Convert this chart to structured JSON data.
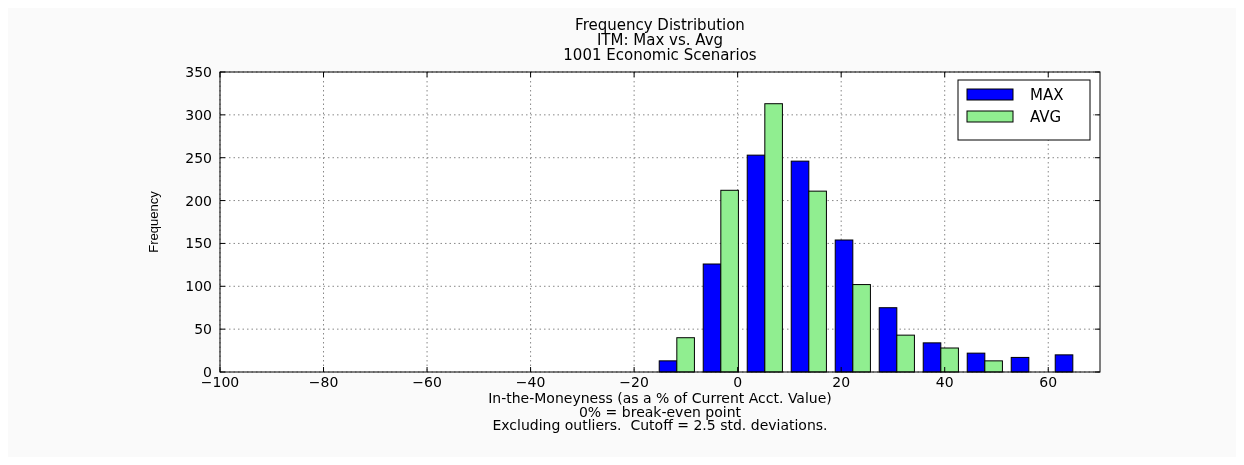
{
  "chart_data": {
    "type": "histogram",
    "title": "Frequency Distribution\nITM: Max vs. Avg\n1001 Economic Scenarios",
    "xlabel": "In-the-Moneyness (as a % of Current Acct. Value)",
    "ylabel": "Frequency",
    "annotations": [
      "0% = break-even point",
      "Excluding outliers.  Cutoff = 2.5 std. deviations."
    ],
    "bins": [
      -16,
      -7.5,
      1,
      9.5,
      18,
      26.5,
      35,
      43.5,
      52,
      60.5,
      69
    ],
    "series": [
      {
        "name": "MAX",
        "color": "#0000ff",
        "values": [
          13,
          126,
          253,
          246,
          154,
          75,
          34,
          22,
          17,
          20
        ]
      },
      {
        "name": "AVG",
        "color": "#90ee90",
        "values": [
          40,
          212,
          313,
          211,
          102,
          43,
          28,
          13,
          0,
          0
        ]
      }
    ],
    "xlim": [
      -100,
      70
    ],
    "xticks": [
      -100,
      -80,
      -60,
      -40,
      -20,
      0,
      20,
      40,
      60
    ],
    "ylim": [
      0,
      350
    ],
    "yticks": [
      0,
      50,
      100,
      150,
      200,
      250,
      300,
      350
    ],
    "grid": true,
    "legend": "top right"
  }
}
